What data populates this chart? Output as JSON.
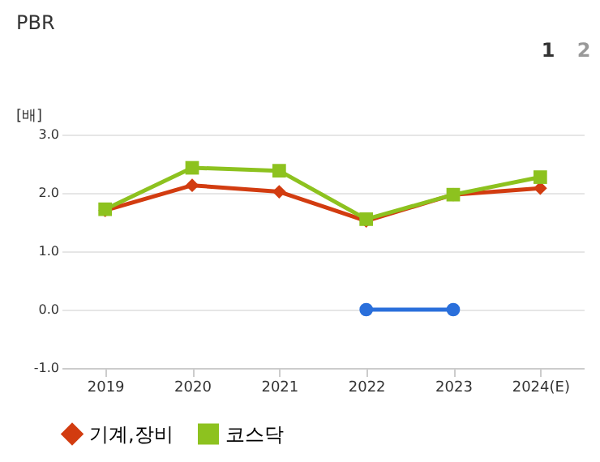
{
  "chart_data": {
    "type": "line",
    "title": "PBR",
    "ylabel": "[배]",
    "categories": [
      "2019",
      "2020",
      "2021",
      "2022",
      "2023",
      "2024(E)"
    ],
    "series": [
      {
        "color": "#2a6fdb",
        "marker": "circle",
        "values": [
          null,
          null,
          null,
          0.0,
          0.0,
          null
        ]
      },
      {
        "name": "기계,장비",
        "color": "#d23c10",
        "marker": "diamond",
        "values": [
          1.7,
          2.13,
          2.02,
          1.52,
          1.97,
          2.08
        ]
      },
      {
        "name": "코스닥",
        "color": "#8dc21f",
        "marker": "square",
        "values": [
          1.72,
          2.43,
          2.38,
          1.55,
          1.97,
          2.27
        ]
      }
    ],
    "ylim": [
      -1.0,
      3.0
    ],
    "yticks": [
      {
        "value": -1,
        "label": "-1.0"
      },
      {
        "value": 0,
        "label": "0.0"
      },
      {
        "value": 1,
        "label": "1.0"
      },
      {
        "value": 2,
        "label": "2.0"
      },
      {
        "value": 3,
        "label": "3.0"
      }
    ],
    "grid": "y",
    "legend": "bottom",
    "line_style": "solid",
    "annotations": [
      "1",
      "2"
    ]
  }
}
